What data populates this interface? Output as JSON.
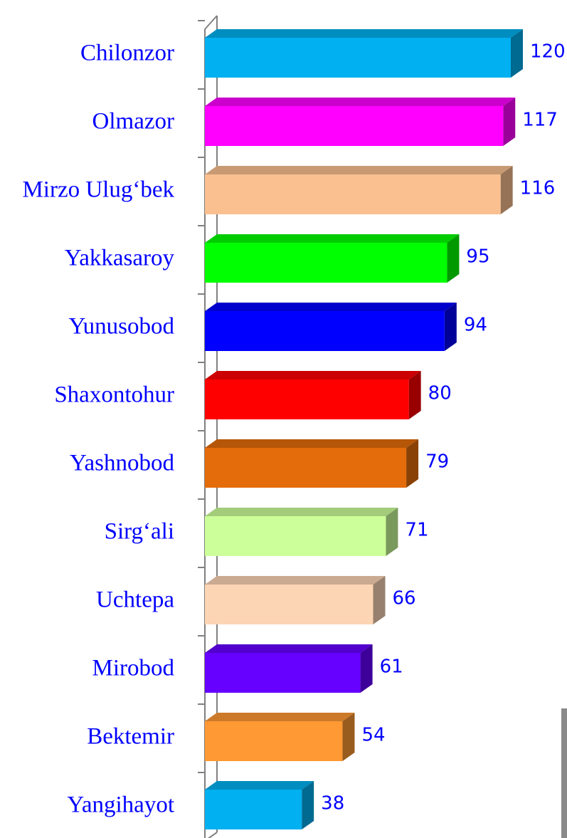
{
  "chart_data": {
    "type": "bar3d_horizontal",
    "categories": [
      "Chilonzor",
      "Olmazor",
      "Mirzo Ulug‘bek",
      "Yakkasaroy",
      "Yunusobod",
      "Shaxontohur",
      "Yashnobod",
      "Sirg‘ali",
      "Uchtepa",
      "Mirobod",
      "Bektemir",
      "Yangihayot"
    ],
    "values": [
      120,
      117,
      116,
      95,
      94,
      80,
      79,
      71,
      66,
      61,
      54,
      38
    ],
    "colors": [
      "#00b0f0",
      "#ff00ff",
      "#fac090",
      "#00ff00",
      "#0000ff",
      "#ff0000",
      "#e46c0a",
      "#ccff99",
      "#fcd5b5",
      "#6600ff",
      "#ff9933",
      "#00b0f0"
    ]
  }
}
